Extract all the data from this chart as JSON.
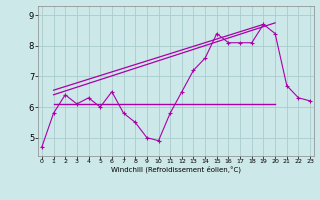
{
  "xlabel": "Windchill (Refroidissement éolien,°C)",
  "bg_color": "#cce8e8",
  "grid_color": "#aacccc",
  "line_color": "#aa00aa",
  "x_ticks": [
    0,
    1,
    2,
    3,
    4,
    5,
    6,
    7,
    8,
    9,
    10,
    11,
    12,
    13,
    14,
    15,
    16,
    17,
    18,
    19,
    20,
    21,
    22,
    23
  ],
  "y_ticks": [
    5,
    6,
    7,
    8,
    9
  ],
  "xlim": [
    -0.3,
    23.3
  ],
  "ylim": [
    4.4,
    9.3
  ],
  "series1_x": [
    0,
    1,
    2,
    3,
    4,
    5,
    6,
    7,
    8,
    9,
    10,
    11,
    12,
    13,
    14,
    15,
    16,
    17,
    18,
    19,
    20,
    21,
    22,
    23
  ],
  "series1_y": [
    4.7,
    5.8,
    6.4,
    6.1,
    6.3,
    6.0,
    6.5,
    5.8,
    5.5,
    5.0,
    4.9,
    5.8,
    6.5,
    7.2,
    7.6,
    8.4,
    8.1,
    8.1,
    8.1,
    8.7,
    8.4,
    6.7,
    6.3,
    6.2
  ],
  "hline_y": 6.1,
  "hline_x0": 1,
  "hline_x1": 20,
  "trend1_x": [
    1,
    20
  ],
  "trend1_y": [
    6.4,
    8.75
  ],
  "trend2_x": [
    1,
    19
  ],
  "trend2_y": [
    6.55,
    8.7
  ],
  "xlabel_fontsize": 5.0,
  "tick_fontsize_x": 4.5,
  "tick_fontsize_y": 6.0
}
